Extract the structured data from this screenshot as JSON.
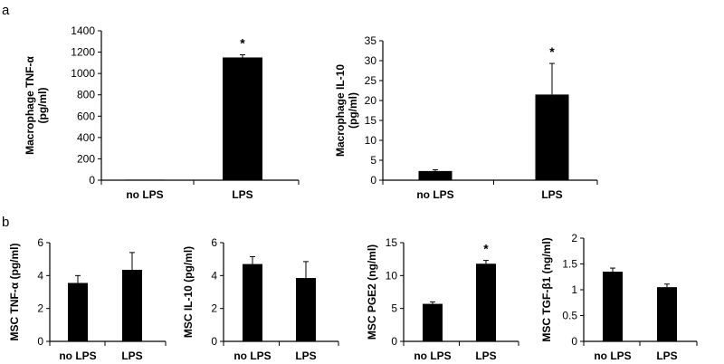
{
  "panel_labels": [
    "a",
    "b"
  ],
  "chart_data": [
    {
      "type": "bar",
      "categories": [
        "no LPS",
        "LPS"
      ],
      "values": [
        5,
        1150
      ],
      "errors": [
        0,
        25
      ],
      "significance": [
        "",
        "*"
      ],
      "ylabel": "Macrophage TNF-α (pg/ml)",
      "ylabel_lines": [
        "Macrophage TNF-α",
        "(pg/ml)"
      ],
      "xlabel": "",
      "ylim": [
        0,
        1400
      ],
      "yticks": [
        0,
        200,
        400,
        600,
        800,
        1000,
        1200,
        1400
      ],
      "ytick_labels": [
        "0",
        "200",
        "400",
        "600",
        "800",
        "1000",
        "1200",
        "1400"
      ],
      "bar_color": "#000000",
      "grid": false
    },
    {
      "type": "bar",
      "categories": [
        "no LPS",
        "LPS"
      ],
      "values": [
        2.3,
        21.5
      ],
      "errors": [
        0.3,
        7.8
      ],
      "significance": [
        "",
        "*"
      ],
      "ylabel": "Macrophage IL-10 (pg/ml)",
      "ylabel_lines": [
        "Macrophage IL-10",
        "(pg/ml)"
      ],
      "xlabel": "",
      "ylim": [
        0,
        35
      ],
      "yticks": [
        0,
        5,
        10,
        15,
        20,
        25,
        30,
        35
      ],
      "ytick_labels": [
        "0",
        "5",
        "10",
        "15",
        "20",
        "25",
        "30",
        "35"
      ],
      "bar_color": "#000000",
      "grid": false
    },
    {
      "type": "bar",
      "categories": [
        "no LPS",
        "LPS"
      ],
      "values": [
        3.55,
        4.35
      ],
      "errors": [
        0.45,
        1.05
      ],
      "significance": [
        "",
        ""
      ],
      "ylabel": "MSC TNF-α (pg/ml)",
      "ylabel_lines": [
        "MSC TNF-α (pg/ml)"
      ],
      "xlabel": "",
      "ylim": [
        0,
        6
      ],
      "yticks": [
        0,
        2,
        4,
        6
      ],
      "ytick_labels": [
        "0",
        "2",
        "4",
        "6"
      ],
      "bar_color": "#000000",
      "grid": false
    },
    {
      "type": "bar",
      "categories": [
        "no LPS",
        "LPS"
      ],
      "values": [
        4.7,
        3.85
      ],
      "errors": [
        0.45,
        1.0
      ],
      "significance": [
        "",
        ""
      ],
      "ylabel": "MSC IL-10 (pg/ml)",
      "ylabel_lines": [
        "MSC IL-10 (pg/ml)"
      ],
      "xlabel": "",
      "ylim": [
        0,
        6
      ],
      "yticks": [
        0,
        2,
        4,
        6
      ],
      "ytick_labels": [
        "0",
        "2",
        "4",
        "6"
      ],
      "bar_color": "#000000",
      "grid": false
    },
    {
      "type": "bar",
      "categories": [
        "no LPS",
        "LPS"
      ],
      "values": [
        5.7,
        11.8
      ],
      "errors": [
        0.3,
        0.5
      ],
      "significance": [
        "",
        "*"
      ],
      "ylabel": "MSC PGE2 (ng/ml)",
      "ylabel_lines": [
        "MSC PGE2 (ng/ml)"
      ],
      "xlabel": "",
      "ylim": [
        0,
        15
      ],
      "yticks": [
        0,
        5,
        10,
        15
      ],
      "ytick_labels": [
        "0",
        "5",
        "10",
        "15"
      ],
      "bar_color": "#000000",
      "grid": false
    },
    {
      "type": "bar",
      "categories": [
        "no LPS",
        "LPS"
      ],
      "values": [
        1.35,
        1.05
      ],
      "errors": [
        0.07,
        0.06
      ],
      "significance": [
        "",
        ""
      ],
      "ylabel": "MSC TGF-β1 (ng/ml)",
      "ylabel_lines": [
        "MSC TGF-β1 (ng/ml)"
      ],
      "xlabel": "",
      "ylim": [
        0,
        2
      ],
      "yticks": [
        0,
        0.5,
        1,
        1.5,
        2
      ],
      "ytick_labels": [
        "0",
        "0.5",
        "1",
        "1.5",
        "2"
      ],
      "bar_color": "#000000",
      "grid": false
    }
  ]
}
